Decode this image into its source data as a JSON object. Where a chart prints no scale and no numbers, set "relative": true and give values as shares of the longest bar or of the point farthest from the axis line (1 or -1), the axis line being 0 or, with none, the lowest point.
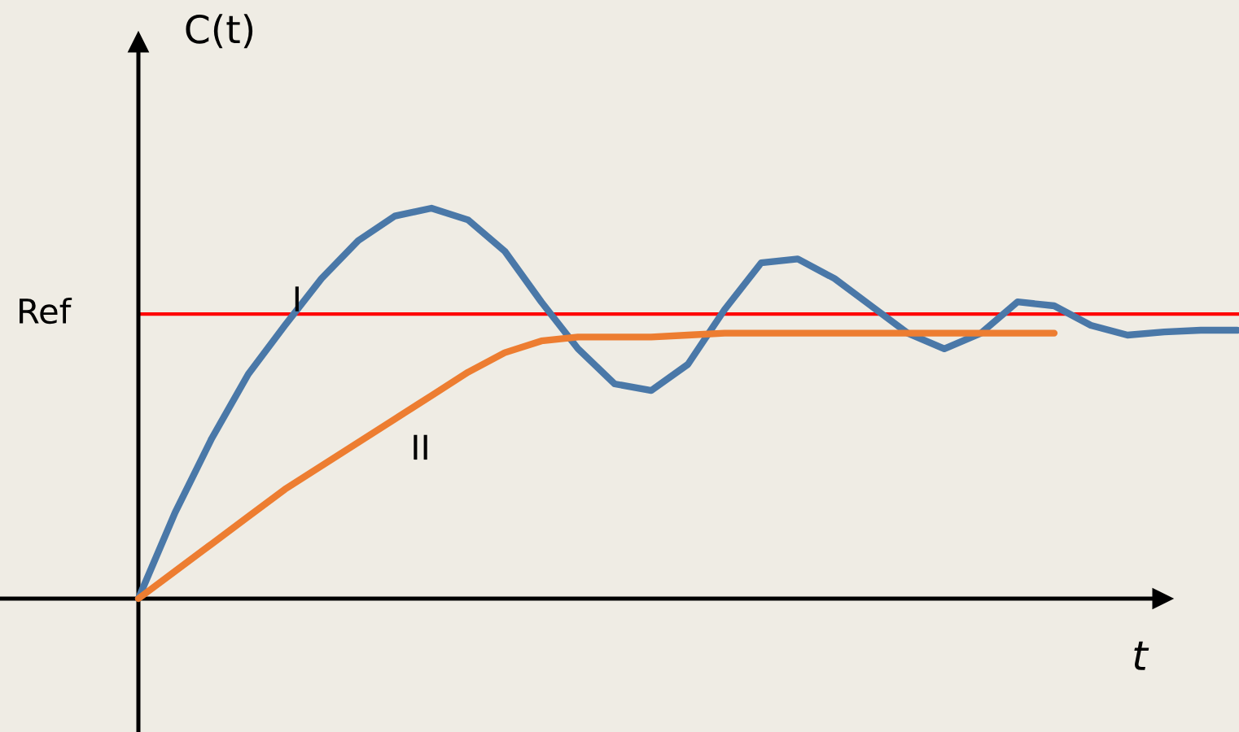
{
  "chart_data": {
    "type": "line",
    "relative": true,
    "xlabel": "t",
    "ylabel": "C(t)",
    "categories": [
      null,
      null,
      null,
      null,
      null,
      null,
      null,
      null,
      null,
      null,
      null,
      null,
      null,
      null,
      null,
      null,
      null,
      null,
      null,
      null,
      null,
      null,
      null,
      null,
      null,
      null,
      null,
      null,
      null,
      null,
      null
    ],
    "series": [
      {
        "name": "I",
        "color": "#4a78a8",
        "values": [
          0,
          0.22,
          0.41,
          0.575,
          0.7,
          0.82,
          0.917,
          0.98,
          1,
          0.97,
          0.89,
          0.76,
          0.64,
          0.55,
          0.533,
          0.6,
          0.74,
          0.86,
          0.87,
          0.82,
          0.75,
          0.68,
          0.64,
          0.68,
          0.76,
          0.75,
          0.7,
          0.675,
          0.683,
          0.6875,
          0.6875
        ]
      },
      {
        "name": "II",
        "color": "#ed7d31",
        "values": [
          0,
          0.07,
          0.14,
          0.21,
          0.28,
          0.34,
          0.4,
          0.46,
          0.52,
          0.58,
          0.63,
          0.66,
          0.67,
          0.67,
          0.67,
          0.675,
          0.68,
          0.68,
          0.68,
          0.68,
          0.68,
          0.68,
          0.68,
          0.68,
          0.68,
          0.68,
          null,
          null,
          null,
          null,
          null
        ]
      }
    ],
    "ref_lines": [
      {
        "axis": "y",
        "value": 0.729,
        "label": "Ref",
        "color": "#ff0000"
      }
    ],
    "legend": false,
    "marker": "none",
    "line_style": "solid"
  }
}
